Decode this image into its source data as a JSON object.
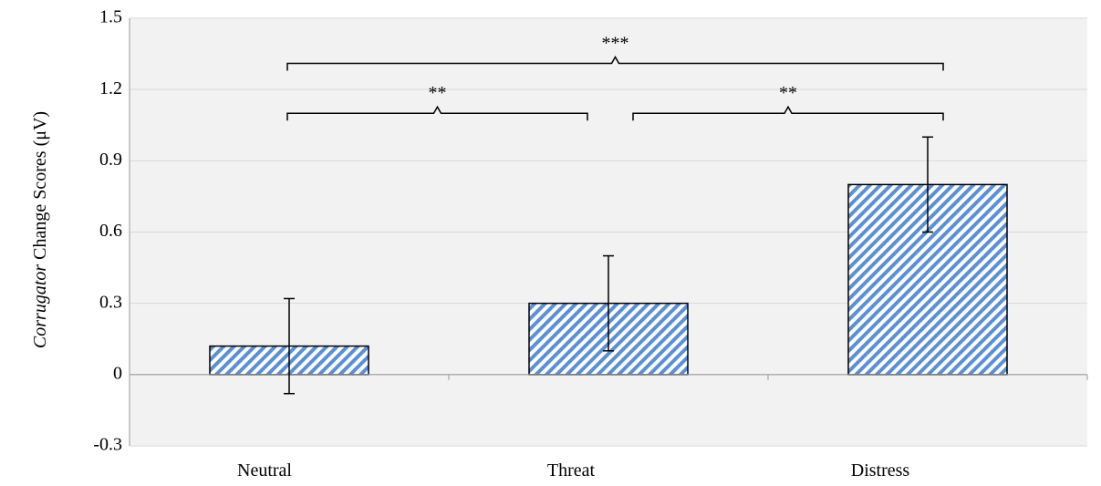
{
  "chart_data": {
    "type": "bar",
    "title": "",
    "xlabel": "",
    "ylabel_italic": "Corrugator",
    "ylabel_rest": " Change Scores (μV)",
    "categories": [
      "Neutral",
      "Threat",
      "Distress"
    ],
    "values": [
      0.12,
      0.3,
      0.8
    ],
    "errors": [
      0.2,
      0.2,
      0.2
    ],
    "ylim": [
      -0.3,
      1.5
    ],
    "yticks": [
      -0.3,
      0,
      0.3,
      0.6,
      0.9,
      1.2,
      1.5
    ],
    "ytick_labels": [
      "-0.3",
      "0",
      "0.3",
      "0.6",
      "0.9",
      "1.2",
      "1.5"
    ],
    "grid": true,
    "legend": "none",
    "bar_fill": "hatched blue diagonal stripes",
    "colors": {
      "plot_bg": "#f2f2f2",
      "grid": "#d9d9d9",
      "bar_stripe": "#5b8fd6",
      "bar_stripe_bg": "#ffffff",
      "bar_edge": "#000000"
    },
    "significance": [
      {
        "from": "Neutral",
        "to": "Threat",
        "label": "**"
      },
      {
        "from": "Threat",
        "to": "Distress",
        "label": "**"
      },
      {
        "from": "Neutral",
        "to": "Distress",
        "label": "***"
      }
    ]
  }
}
